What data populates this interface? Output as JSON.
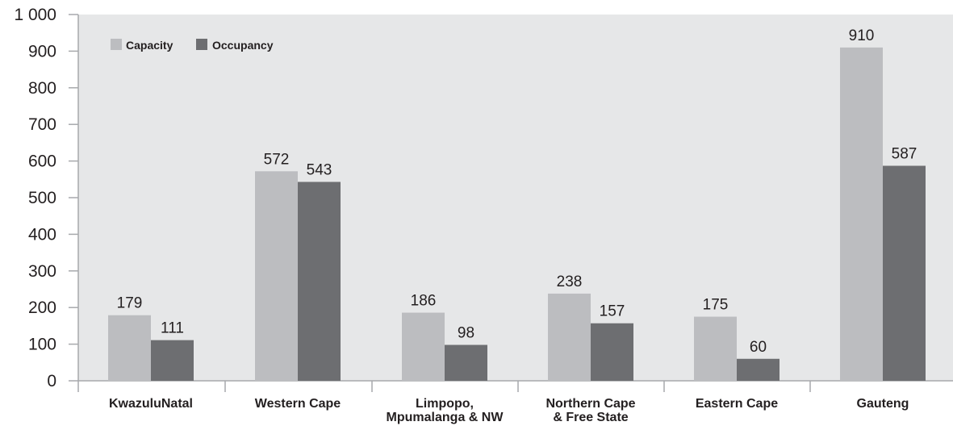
{
  "chart_data": {
    "type": "bar",
    "categories": [
      [
        "KwazuluNatal"
      ],
      [
        "Western Cape"
      ],
      [
        "Limpopo,",
        "Mpumalanga & NW"
      ],
      [
        "Northern Cape",
        "& Free State"
      ],
      [
        "Eastern Cape"
      ],
      [
        "Gauteng"
      ]
    ],
    "series": [
      {
        "name": "Capacity",
        "values": [
          179,
          572,
          186,
          238,
          175,
          910
        ],
        "color": "#bcbdc0"
      },
      {
        "name": "Occupancy",
        "values": [
          111,
          543,
          98,
          157,
          60,
          587
        ],
        "color": "#6d6e71"
      }
    ],
    "ylim": [
      0,
      1000
    ],
    "yticks": [
      0,
      100,
      200,
      300,
      400,
      500,
      600,
      700,
      800,
      900,
      1000
    ],
    "ytick_labels": [
      "0",
      "100",
      "200",
      "300",
      "400",
      "500",
      "600",
      "700",
      "800",
      "900",
      "1 000"
    ],
    "title": "",
    "xlabel": "",
    "ylabel": "",
    "legend_position": "top-left",
    "grid": false,
    "plot_background": "#e6e7e8",
    "label_color": "#231f20",
    "axis_color": "#a7a9ac"
  }
}
